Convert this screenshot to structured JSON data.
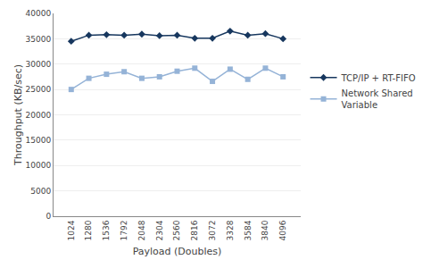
{
  "chart_data": {
    "type": "line",
    "x_label": "Payload (Doubles)",
    "y_label": "Throughput (KB/sec)",
    "x": [
      1024,
      1280,
      1536,
      1792,
      2048,
      2304,
      2560,
      2816,
      3072,
      3328,
      3584,
      3840,
      4096
    ],
    "series": [
      {
        "name": "TCP/IP + RT-FIFO",
        "color": "#17375E",
        "marker": "diamond",
        "values": [
          34500,
          35700,
          35800,
          35700,
          35900,
          35600,
          35700,
          35100,
          35100,
          36500,
          35700,
          36000,
          35000
        ]
      },
      {
        "name": "Network Shared\nVariable",
        "color": "#95B3D7",
        "marker": "square",
        "values": [
          25000,
          27200,
          28000,
          28500,
          27200,
          27500,
          28600,
          29200,
          26600,
          29000,
          27000,
          29200,
          27500
        ]
      }
    ],
    "xlim": [
      768,
      4352
    ],
    "xticks": [
      1024,
      1280,
      1536,
      1792,
      2048,
      2304,
      2560,
      2816,
      3072,
      3328,
      3584,
      3840,
      4096
    ],
    "ylim": [
      0,
      40000
    ],
    "yticks": [
      0,
      5000,
      10000,
      15000,
      20000,
      25000,
      30000,
      35000,
      40000
    ],
    "grid": "y",
    "legend": "right"
  }
}
